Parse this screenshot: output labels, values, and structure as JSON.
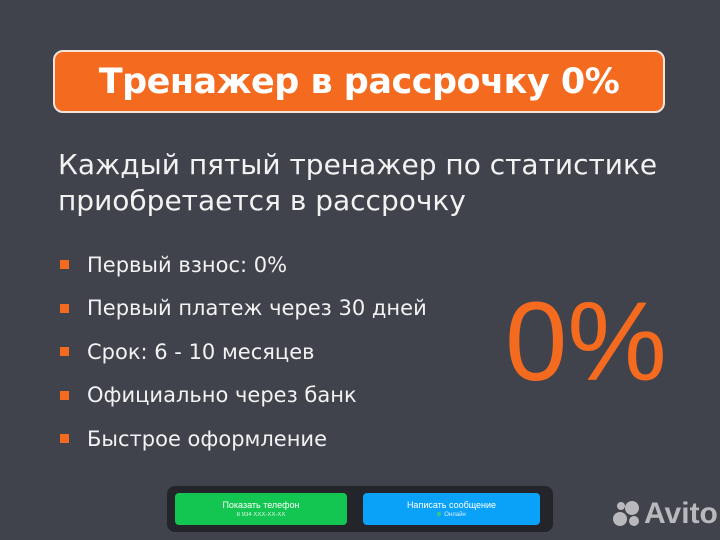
{
  "banner": {
    "title": "Тренажер в рассрочку 0%"
  },
  "subtitle": {
    "line1": "Каждый пятый тренажер по статистике",
    "line2": "приобретается в рассрочку"
  },
  "features": [
    "Первый взнос:  0%",
    "Первый платеж через 30 дней",
    "Срок:  6 - 10 месяцев",
    "Официально через банк",
    "Быстрое оформление"
  ],
  "big_percent": "0%",
  "contact": {
    "phone_button": {
      "label": "Показать телефон",
      "sub": "8 934 XXX-XX-XX"
    },
    "message_button": {
      "label": "Написать сообщение",
      "sub": "Онлайн"
    }
  },
  "logo": {
    "text": "Avito"
  },
  "colors": {
    "accent": "#f46a1f",
    "background": "#40424c",
    "green": "#13c651",
    "blue": "#0aa2f9"
  }
}
